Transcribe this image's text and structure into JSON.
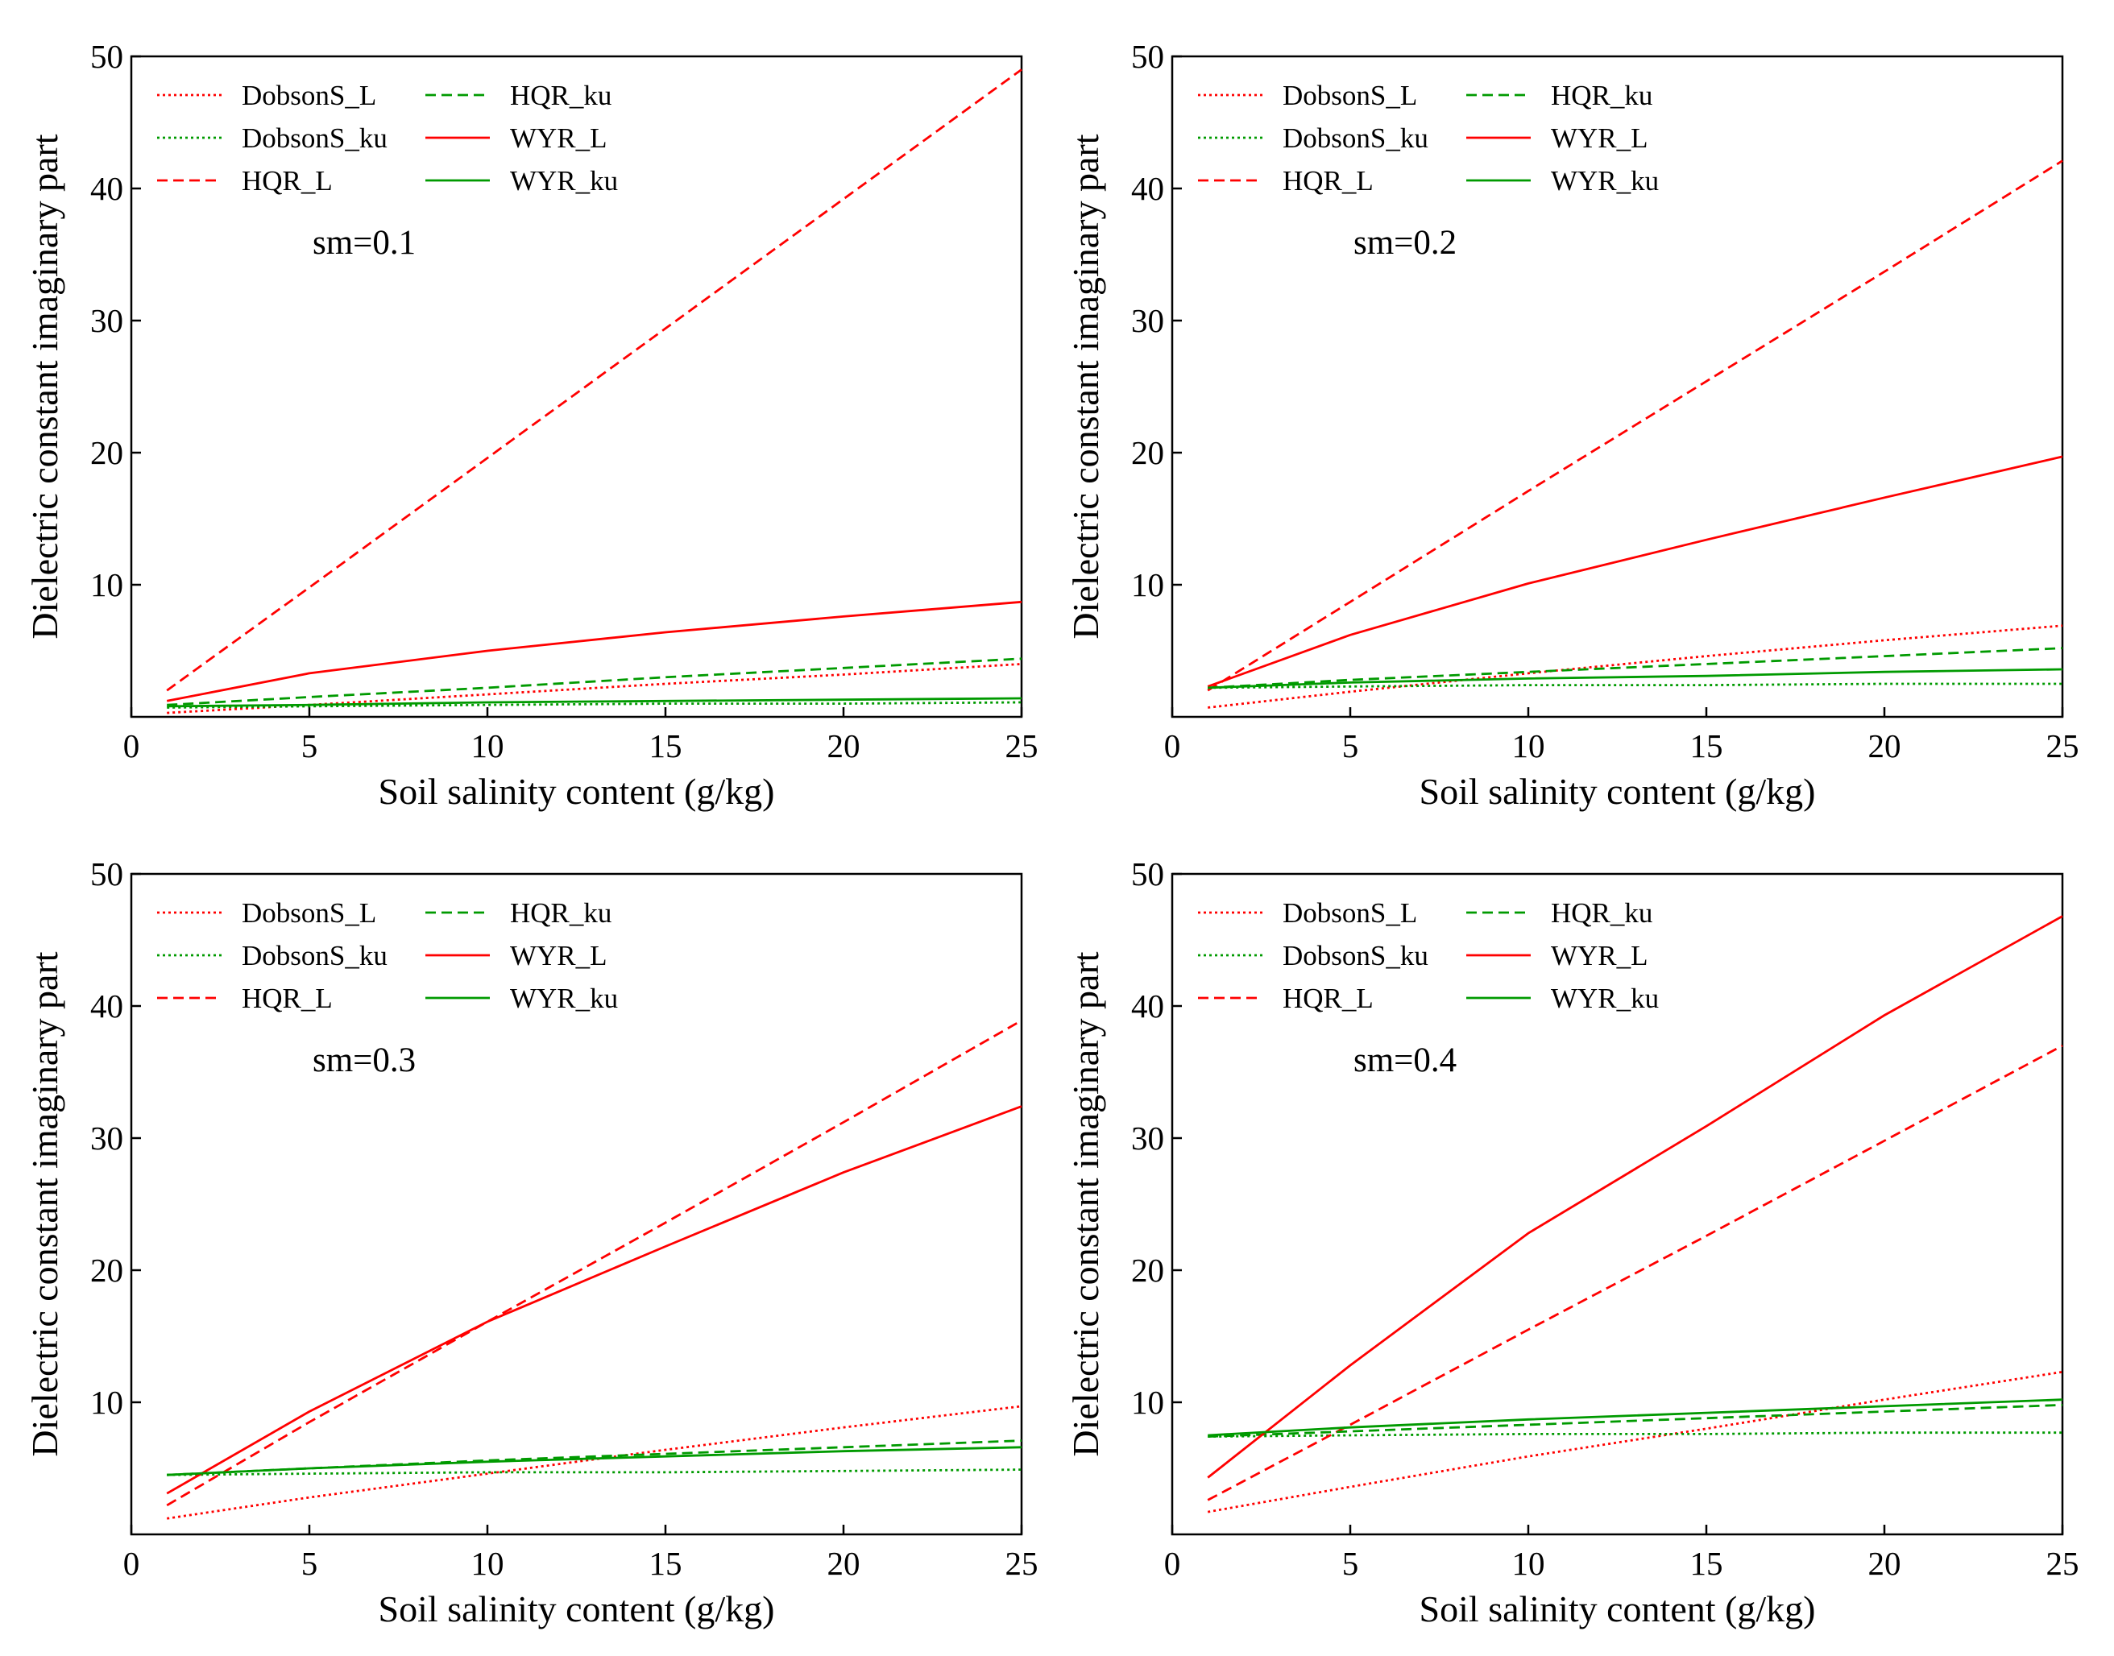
{
  "colors": {
    "red": "#ff0000",
    "green": "#009a00",
    "axis": "#000000"
  },
  "chart_data": [
    {
      "type": "line",
      "annotation": "sm=0.1",
      "xlabel": "Soil salinity content (g/kg)",
      "ylabel": "Dielectric constant imaginary part",
      "xlim": [
        0,
        25
      ],
      "ylim": [
        0,
        50
      ],
      "xticks": [
        0,
        5,
        10,
        15,
        20,
        25
      ],
      "yticks": [
        10,
        20,
        30,
        40,
        50
      ],
      "legend_position": "top-left",
      "x": [
        1,
        5,
        10,
        15,
        20,
        25
      ],
      "series": [
        {
          "name": "DobsonS_L",
          "color": "red",
          "style": "dotted",
          "values": [
            0.3,
            0.9,
            1.7,
            2.5,
            3.2,
            4.0
          ]
        },
        {
          "name": "DobsonS_ku",
          "color": "green",
          "style": "dotted",
          "values": [
            0.7,
            0.8,
            0.9,
            1.0,
            1.0,
            1.1
          ]
        },
        {
          "name": "HQR_L",
          "color": "red",
          "style": "dashed",
          "values": [
            2.0,
            9.8,
            19.6,
            29.4,
            39.2,
            49.0
          ]
        },
        {
          "name": "HQR_ku",
          "color": "green",
          "style": "dashed",
          "values": [
            0.9,
            1.5,
            2.2,
            3.0,
            3.7,
            4.4
          ]
        },
        {
          "name": "WYR_L",
          "color": "red",
          "style": "solid",
          "values": [
            1.2,
            3.3,
            5.0,
            6.4,
            7.6,
            8.7
          ]
        },
        {
          "name": "WYR_ku",
          "color": "green",
          "style": "solid",
          "values": [
            0.8,
            0.9,
            1.1,
            1.2,
            1.3,
            1.4
          ]
        }
      ]
    },
    {
      "type": "line",
      "annotation": "sm=0.2",
      "xlabel": "Soil salinity content (g/kg)",
      "ylabel": "Dielectric constant imaginary part",
      "xlim": [
        0,
        25
      ],
      "ylim": [
        0,
        50
      ],
      "xticks": [
        0,
        5,
        10,
        15,
        20,
        25
      ],
      "yticks": [
        10,
        20,
        30,
        40,
        50
      ],
      "legend_position": "top-left",
      "x": [
        1,
        5,
        10,
        15,
        20,
        25
      ],
      "series": [
        {
          "name": "DobsonS_L",
          "color": "red",
          "style": "dotted",
          "values": [
            0.7,
            1.9,
            3.3,
            4.6,
            5.8,
            6.9
          ]
        },
        {
          "name": "DobsonS_ku",
          "color": "green",
          "style": "dotted",
          "values": [
            2.2,
            2.3,
            2.4,
            2.4,
            2.5,
            2.5
          ]
        },
        {
          "name": "HQR_L",
          "color": "red",
          "style": "dashed",
          "values": [
            2.0,
            8.7,
            17.1,
            25.4,
            33.7,
            42.1
          ]
        },
        {
          "name": "HQR_ku",
          "color": "green",
          "style": "dashed",
          "values": [
            2.2,
            2.8,
            3.4,
            4.0,
            4.6,
            5.2
          ]
        },
        {
          "name": "WYR_L",
          "color": "red",
          "style": "solid",
          "values": [
            2.3,
            6.2,
            10.1,
            13.4,
            16.6,
            19.7
          ]
        },
        {
          "name": "WYR_ku",
          "color": "green",
          "style": "solid",
          "values": [
            2.2,
            2.6,
            2.9,
            3.1,
            3.4,
            3.6
          ]
        }
      ]
    },
    {
      "type": "line",
      "annotation": "sm=0.3",
      "xlabel": "Soil salinity content (g/kg)",
      "ylabel": "Dielectric constant imaginary part",
      "xlim": [
        0,
        25
      ],
      "ylim": [
        0,
        50
      ],
      "xticks": [
        0,
        5,
        10,
        15,
        20,
        25
      ],
      "yticks": [
        10,
        20,
        30,
        40,
        50
      ],
      "legend_position": "top-left",
      "x": [
        1,
        5,
        10,
        15,
        20,
        25
      ],
      "series": [
        {
          "name": "DobsonS_L",
          "color": "red",
          "style": "dotted",
          "values": [
            1.2,
            2.8,
            4.6,
            6.4,
            8.1,
            9.7
          ]
        },
        {
          "name": "DobsonS_ku",
          "color": "green",
          "style": "dotted",
          "values": [
            4.5,
            4.6,
            4.7,
            4.7,
            4.8,
            4.9
          ]
        },
        {
          "name": "HQR_L",
          "color": "red",
          "style": "dashed",
          "values": [
            2.2,
            8.5,
            16.1,
            23.6,
            31.2,
            38.9
          ]
        },
        {
          "name": "HQR_ku",
          "color": "green",
          "style": "dashed",
          "values": [
            4.5,
            5.0,
            5.6,
            6.1,
            6.6,
            7.1
          ]
        },
        {
          "name": "WYR_L",
          "color": "red",
          "style": "solid",
          "values": [
            3.1,
            9.3,
            16.1,
            21.8,
            27.4,
            32.4
          ]
        },
        {
          "name": "WYR_ku",
          "color": "green",
          "style": "solid",
          "values": [
            4.5,
            5.0,
            5.5,
            5.9,
            6.3,
            6.6
          ]
        }
      ]
    },
    {
      "type": "line",
      "annotation": "sm=0.4",
      "xlabel": "Soil salinity content (g/kg)",
      "ylabel": "Dielectric constant imaginary part",
      "xlim": [
        0,
        25
      ],
      "ylim": [
        0,
        50
      ],
      "xticks": [
        0,
        5,
        10,
        15,
        20,
        25
      ],
      "yticks": [
        10,
        20,
        30,
        40,
        50
      ],
      "legend_position": "top-left",
      "x": [
        1,
        5,
        10,
        15,
        20,
        25
      ],
      "series": [
        {
          "name": "DobsonS_L",
          "color": "red",
          "style": "dotted",
          "values": [
            1.7,
            3.6,
            5.9,
            8.0,
            10.2,
            12.3
          ]
        },
        {
          "name": "DobsonS_ku",
          "color": "green",
          "style": "dotted",
          "values": [
            7.4,
            7.5,
            7.6,
            7.6,
            7.7,
            7.7
          ]
        },
        {
          "name": "HQR_L",
          "color": "red",
          "style": "dashed",
          "values": [
            2.6,
            8.3,
            15.5,
            22.6,
            29.8,
            37.0
          ]
        },
        {
          "name": "HQR_ku",
          "color": "green",
          "style": "dashed",
          "values": [
            7.4,
            7.8,
            8.3,
            8.8,
            9.3,
            9.8
          ]
        },
        {
          "name": "WYR_L",
          "color": "red",
          "style": "solid",
          "values": [
            4.3,
            12.8,
            22.8,
            30.9,
            39.3,
            46.8
          ]
        },
        {
          "name": "WYR_ku",
          "color": "green",
          "style": "solid",
          "values": [
            7.5,
            8.1,
            8.7,
            9.2,
            9.7,
            10.2
          ]
        }
      ]
    }
  ]
}
